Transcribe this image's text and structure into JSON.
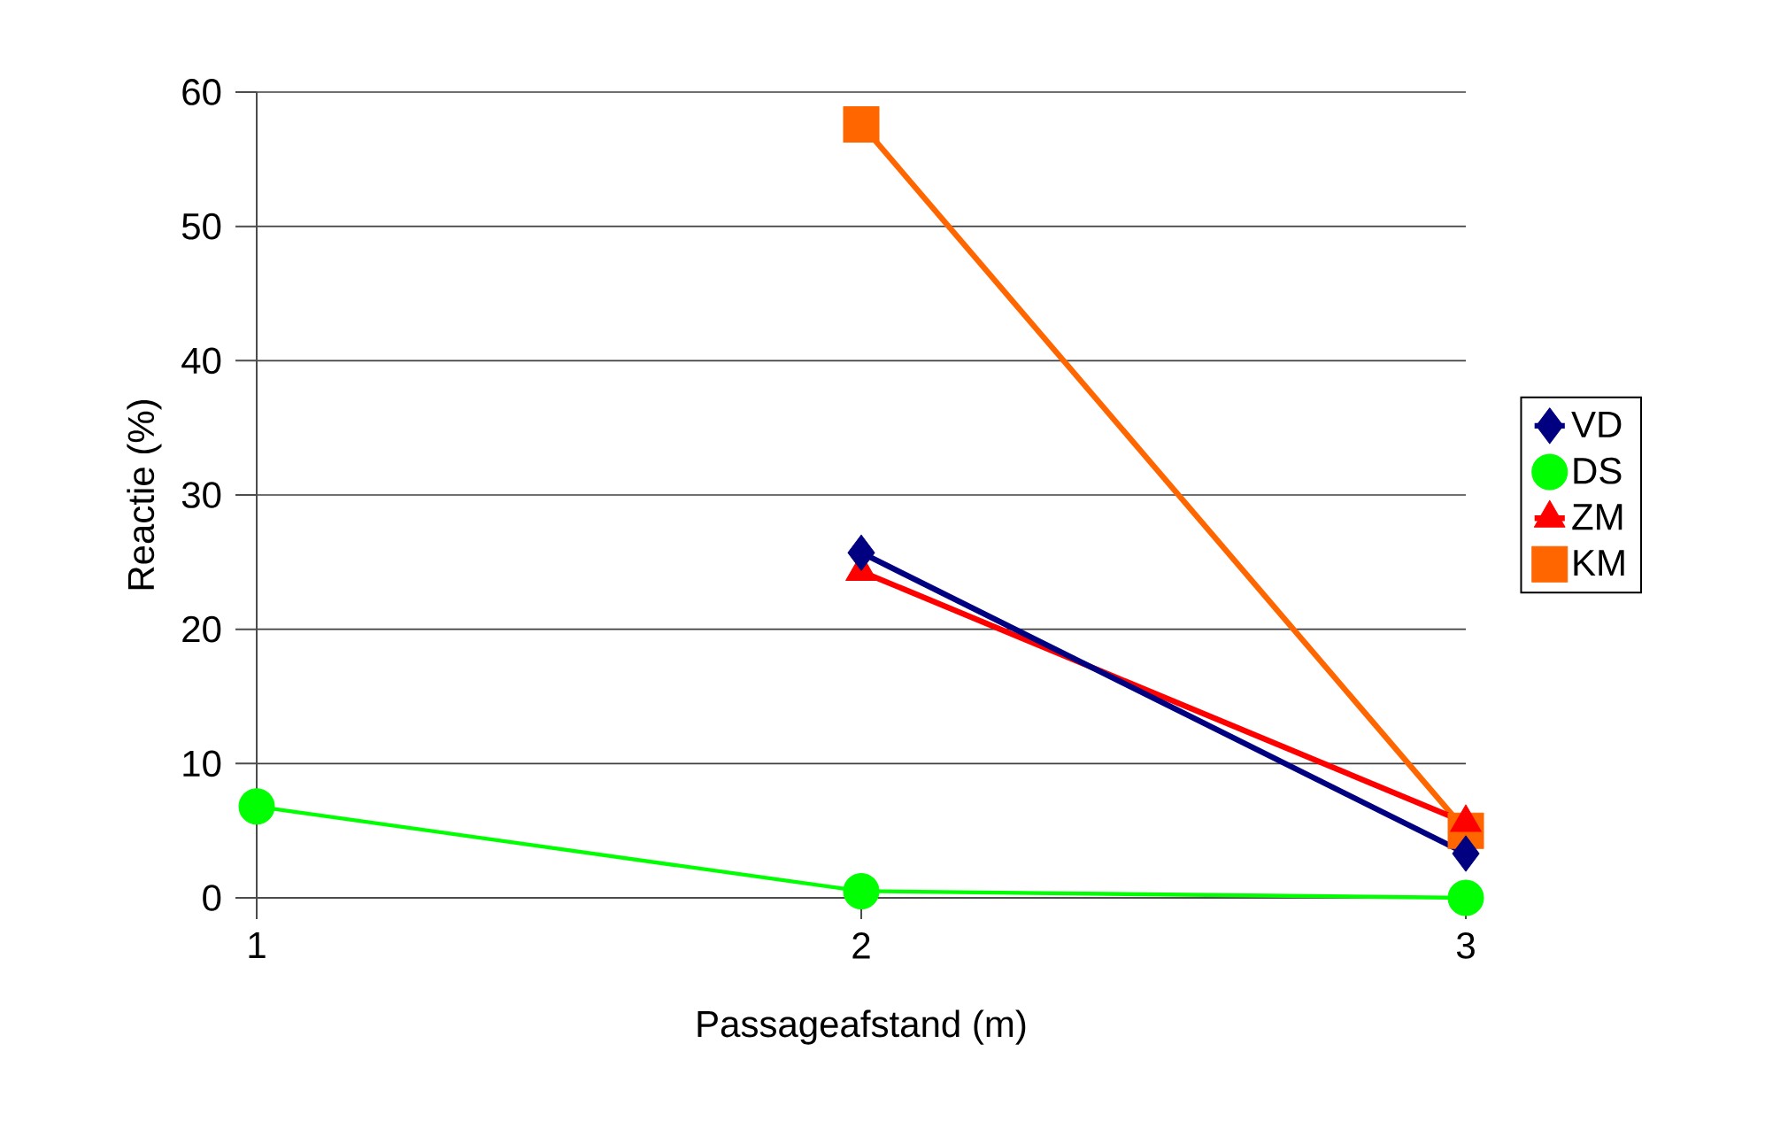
{
  "chart_data": {
    "type": "line",
    "xlabel": "Passageafstand (m)",
    "ylabel": "Reactie (%)",
    "categories": [
      "1",
      "2",
      "3"
    ],
    "series": [
      {
        "name": "VD",
        "color": "#000080",
        "marker": "diamond",
        "values": [
          null,
          25.7,
          3.3
        ]
      },
      {
        "name": "DS",
        "color": "#00ff00",
        "marker": "circle",
        "values": [
          6.8,
          0.5,
          0
        ]
      },
      {
        "name": "ZM",
        "color": "#ff0000",
        "marker": "triangle",
        "values": [
          null,
          24.3,
          5.6
        ]
      },
      {
        "name": "KM",
        "color": "#ff6600",
        "marker": "square",
        "values": [
          null,
          57.6,
          5.0
        ]
      }
    ],
    "ylim": [
      0,
      60
    ],
    "yticks": [
      0,
      10,
      20,
      30,
      40,
      50,
      60
    ],
    "grid": "y",
    "legend": "right"
  }
}
